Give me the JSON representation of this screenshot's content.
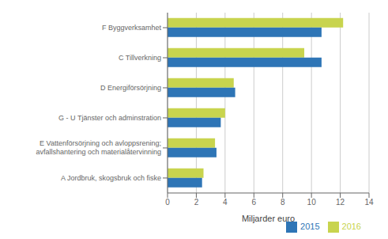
{
  "chart_data": {
    "type": "bar",
    "orientation": "horizontal",
    "categories": [
      "F Byggverksamhet",
      "C Tillverkning",
      "D Energiförsörjning",
      "G - U Tjänster och adminstration",
      "E Vattenförsörjning och avloppsrening;\navfallshantering och materialåtervinning",
      "A Jordbruk, skogsbruk och fiske"
    ],
    "series": [
      {
        "name": "2016",
        "color": "#c8d44e",
        "values": [
          12.2,
          9.5,
          4.6,
          4.0,
          3.3,
          2.5
        ]
      },
      {
        "name": "2015",
        "color": "#2e75b6",
        "values": [
          10.7,
          10.7,
          4.7,
          3.7,
          3.4,
          2.4
        ]
      }
    ],
    "xlabel": "Miljarder euro",
    "xlim": [
      0,
      14
    ],
    "xticks": [
      0,
      2,
      4,
      6,
      8,
      10,
      12,
      14
    ],
    "grid": true,
    "legend": "lower right"
  }
}
